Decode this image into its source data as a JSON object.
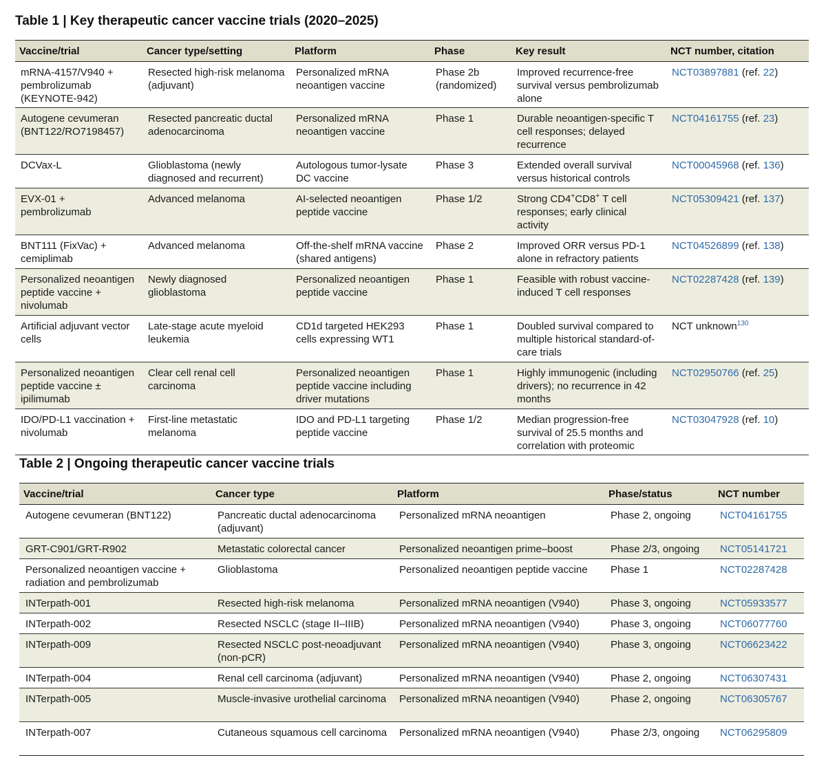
{
  "table1": {
    "title": "Table 1 | Key therapeutic cancer vaccine trials (2020–2025)",
    "headers": [
      "Vaccine/trial",
      "Cancer type/setting",
      "Platform",
      "Phase",
      "Key result",
      "NCT number, citation"
    ],
    "rows": [
      {
        "vaccine": "mRNA-4157/V940 + pembrolizumab (KEYNOTE-942)",
        "cancer": "Resected high-risk melanoma (adjuvant)",
        "platform": "Personalized mRNA neoantigen vaccine",
        "phase": "Phase 2b (randomized)",
        "result": "Improved recurrence-free survival versus pembrolizumab alone",
        "nct": "NCT03897881",
        "ref_prefix": " (ref. ",
        "ref": "22",
        "ref_suffix": ")"
      },
      {
        "vaccine": "Autogene cevumeran (BNT122/RO7198457)",
        "cancer": "Resected pancreatic ductal adenocarcinoma",
        "platform": "Personalized mRNA neoantigen vaccine",
        "phase": "Phase 1",
        "result": "Durable neoantigen-specific T cell responses; delayed recurrence",
        "nct": "NCT04161755",
        "ref_prefix": " (ref. ",
        "ref": "23",
        "ref_suffix": ")"
      },
      {
        "vaccine": "DCVax-L",
        "cancer": "Glioblastoma (newly diagnosed and recurrent)",
        "platform": "Autologous tumor-lysate DC vaccine",
        "phase": "Phase 3",
        "result": "Extended overall survival versus historical controls",
        "nct": "NCT00045968",
        "ref_prefix": " (ref. ",
        "ref": "136",
        "ref_suffix": ")"
      },
      {
        "vaccine": "EVX-01 + pembrolizumab",
        "cancer": "Advanced melanoma",
        "platform": "AI-selected neoantigen peptide vaccine",
        "phase": "Phase 1/2",
        "result_a": "Strong CD4",
        "result_sup_a": "+",
        "result_b": "CD8",
        "result_sup_b": "+",
        "result_c": " T cell responses; early clinical activity",
        "nct": "NCT05309421",
        "ref_prefix": " (ref. ",
        "ref": "137",
        "ref_suffix": ")"
      },
      {
        "vaccine": "BNT111 (FixVac) + cemiplimab",
        "cancer": "Advanced melanoma",
        "platform": "Off-the-shelf mRNA vaccine (shared antigens)",
        "phase": "Phase 2",
        "result": "Improved ORR versus PD-1 alone in refractory patients",
        "nct": "NCT04526899",
        "ref_prefix": " (ref. ",
        "ref": "138",
        "ref_suffix": ")"
      },
      {
        "vaccine": "Personalized neoantigen peptide vaccine + nivolumab",
        "cancer": "Newly diagnosed glioblastoma",
        "platform": "Personalized neoantigen peptide vaccine",
        "phase": "Phase 1",
        "result": "Feasible with robust vaccine-induced T cell responses",
        "nct": "NCT02287428",
        "ref_prefix": " (ref. ",
        "ref": "139",
        "ref_suffix": ")"
      },
      {
        "vaccine": "Artificial adjuvant vector cells",
        "cancer": "Late-stage acute myeloid leukemia",
        "platform": "CD1d targeted HEK293 cells expressing WT1",
        "phase": "Phase 1",
        "result": "Doubled survival compared to multiple historical standard-of-care trials",
        "nct_text": "NCT unknown",
        "nct_sup": "130"
      },
      {
        "vaccine": "Personalized neoantigen peptide vaccine ± ipilimumab",
        "cancer": "Clear cell renal cell carcinoma",
        "platform": "Personalized neoantigen peptide vaccine including driver mutations",
        "phase": "Phase 1",
        "result": "Highly immunogenic (including drivers); no recurrence in 42 months",
        "nct": "NCT02950766",
        "ref_prefix": " (ref. ",
        "ref": "25",
        "ref_suffix": ")"
      },
      {
        "vaccine": "IDO/PD-L1 vaccination + nivolumab",
        "cancer": "First-line metastatic melanoma",
        "platform": "IDO and PD-L1 targeting peptide vaccine",
        "phase": "Phase 1/2",
        "result": "Median progression-free survival of 25.5 months and correlation with proteomic",
        "nct": "NCT03047928",
        "ref_prefix": " (ref. ",
        "ref": "10",
        "ref_suffix": ")"
      }
    ]
  },
  "table2": {
    "title": "Table 2 | Ongoing therapeutic cancer vaccine trials",
    "headers": [
      "Vaccine/trial",
      "Cancer type",
      "Platform",
      "Phase/status",
      "NCT number"
    ],
    "rows": [
      {
        "vaccine": "Autogene cevumeran (BNT122)",
        "cancer": "Pancreatic ductal adenocarcinoma (adjuvant)",
        "platform": "Personalized mRNA neoantigen",
        "phase": "Phase 2, ongoing",
        "nct": "NCT04161755"
      },
      {
        "vaccine": "GRT-C901/GRT-R902",
        "cancer": "Metastatic colorectal cancer",
        "platform": "Personalized neoantigen prime–boost",
        "phase": "Phase 2/3, ongoing",
        "nct": "NCT05141721"
      },
      {
        "vaccine": "Personalized neoantigen vaccine + radiation and pembrolizumab",
        "cancer": "Glioblastoma",
        "platform": "Personalized neoantigen peptide vaccine",
        "phase": "Phase 1",
        "nct": "NCT02287428"
      },
      {
        "vaccine": "INTerpath-001",
        "cancer": "Resected high-risk melanoma",
        "platform": "Personalized mRNA neoantigen (V940)",
        "phase": "Phase 3, ongoing",
        "nct": "NCT05933577"
      },
      {
        "vaccine": "INTerpath-002",
        "cancer": "Resected NSCLC (stage II–IIIB)",
        "platform": "Personalized mRNA neoantigen (V940)",
        "phase": "Phase 3, ongoing",
        "nct": "NCT06077760"
      },
      {
        "vaccine": "INTerpath-009",
        "cancer": "Resected NSCLC post-neoadjuvant (non-pCR)",
        "platform": "Personalized mRNA neoantigen (V940)",
        "phase": "Phase 3, ongoing",
        "nct": "NCT06623422"
      },
      {
        "vaccine": "INTerpath-004",
        "cancer": "Renal cell carcinoma (adjuvant)",
        "platform": "Personalized mRNA neoantigen (V940)",
        "phase": "Phase 2, ongoing",
        "nct": "NCT06307431"
      },
      {
        "vaccine": "INTerpath-005",
        "cancer": "Muscle-invasive urothelial carcinoma",
        "platform": "Personalized mRNA neoantigen (V940)",
        "phase": "Phase 2, ongoing",
        "nct": "NCT06305767"
      },
      {
        "vaccine": "INTerpath-007",
        "cancer": "Cutaneous squamous cell carcinoma",
        "platform": "Personalized mRNA neoantigen (V940)",
        "phase": "Phase 2/3, ongoing",
        "nct": "NCT06295809"
      }
    ]
  },
  "colors": {
    "header_bg": "#dedecb",
    "stripe_bg": "#ededdf",
    "link": "#2f6aa6"
  }
}
